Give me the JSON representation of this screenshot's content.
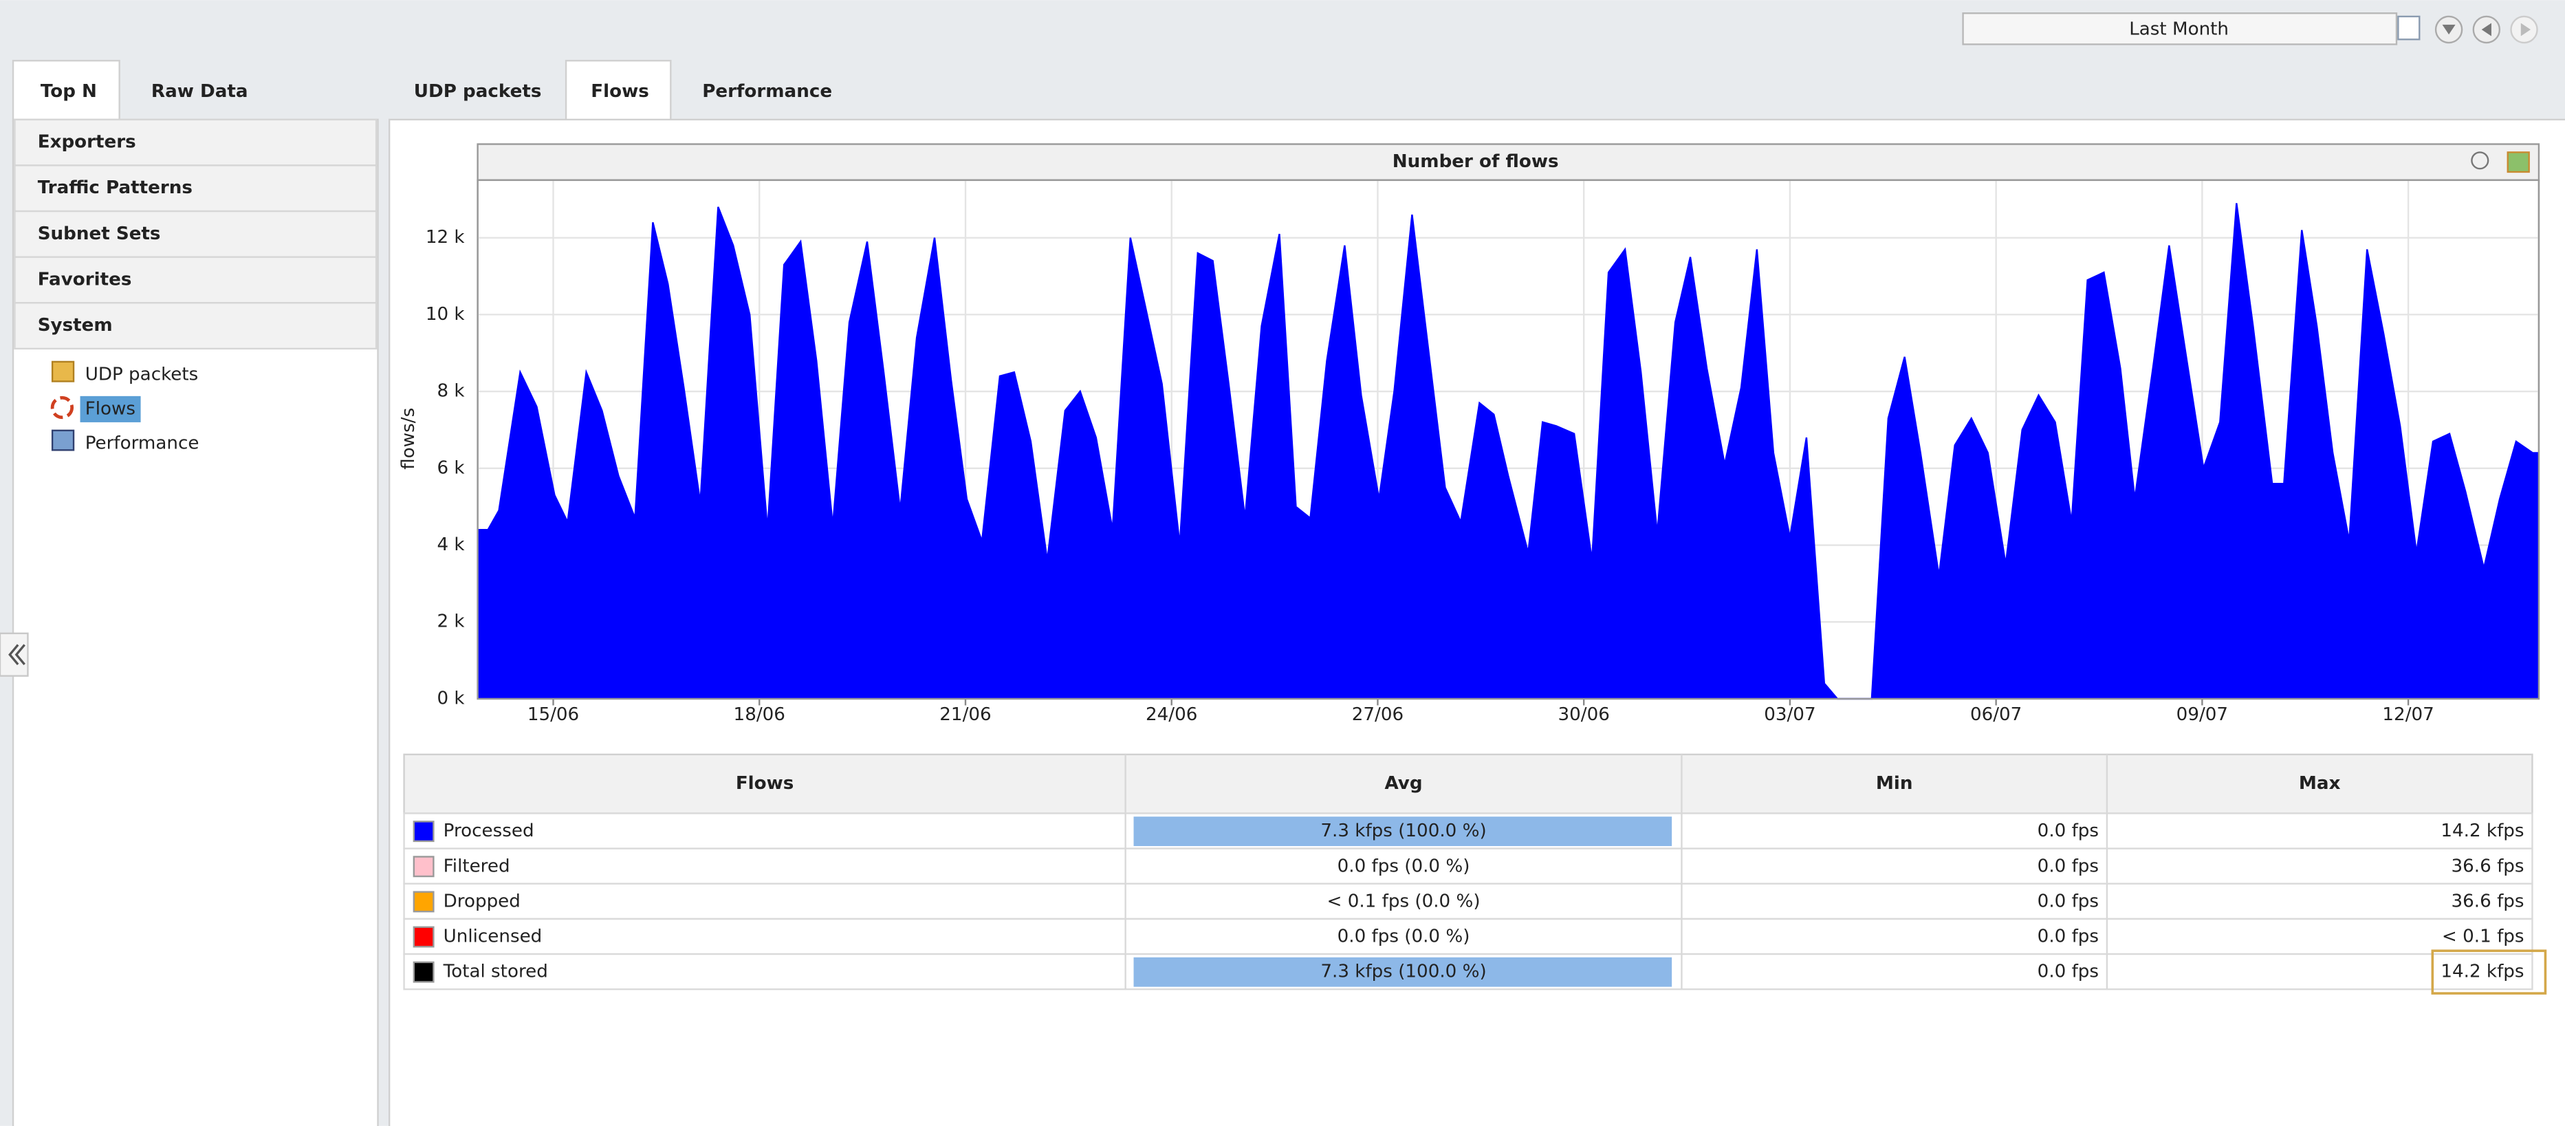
{
  "date_range": "Last Month",
  "left_tabs": [
    "Top N",
    "Raw Data"
  ],
  "right_tabs": [
    "UDP packets",
    "Flows",
    "Performance"
  ],
  "sidebar": {
    "sections": [
      "Exporters",
      "Traffic Patterns",
      "Subnet Sets",
      "Favorites",
      "System"
    ],
    "items": [
      "UDP packets",
      "Flows",
      "Performance"
    ]
  },
  "chart_data": {
    "type": "area",
    "title": "Number of flows",
    "y_label": "flows/s",
    "color": "#0000ff",
    "grid": true,
    "x": [
      -1.1,
      -0.95,
      -0.79,
      -0.48,
      -0.24,
      0.02,
      0.21,
      0.48,
      0.71,
      0.95,
      1.19,
      1.45,
      1.67,
      1.9,
      2.14,
      2.4,
      2.62,
      2.86,
      3.12,
      3.36,
      3.6,
      3.83,
      4.07,
      4.31,
      4.57,
      4.81,
      5.05,
      5.29,
      5.55,
      5.79,
      6.02,
      6.24,
      6.5,
      6.71,
      6.95,
      7.19,
      7.45,
      7.67,
      7.9,
      8.14,
      8.4,
      8.62,
      8.86,
      9.12,
      9.38,
      9.6,
      9.83,
      10.07,
      10.31,
      10.57,
      10.81,
      11.02,
      11.26,
      11.52,
      11.76,
      12.02,
      12.24,
      12.5,
      12.71,
      12.98,
      13.21,
      13.48,
      13.69,
      13.9,
      14.19,
      14.4,
      14.6,
      14.86,
      15.12,
      15.36,
      15.6,
      15.83,
      16.07,
      16.33,
      16.55,
      16.79,
      17.05,
      17.29,
      17.52,
      17.76,
      18.0,
      18.24,
      18.5,
      18.69,
      19.19,
      19.43,
      19.67,
      19.9,
      20.17,
      20.4,
      20.64,
      20.88,
      21.14,
      21.38,
      21.62,
      21.86,
      22.1,
      22.33,
      22.57,
      22.81,
      23.02,
      23.29,
      23.52,
      23.76,
      24.02,
      24.26,
      24.5,
      24.74,
      25.02,
      25.19,
      25.45,
      25.67,
      25.9,
      26.14,
      26.4,
      26.64,
      26.88,
      27.12,
      27.36,
      27.6,
      27.83,
      28.1,
      28.33,
      28.57,
      28.81,
      28.9
    ],
    "values": [
      4400,
      4400,
      4900,
      8500,
      7600,
      5300,
      4600,
      8500,
      7500,
      5800,
      4700,
      12400,
      10800,
      8100,
      5100,
      12800,
      11800,
      10000,
      4400,
      11300,
      11900,
      8800,
      4500,
      9800,
      11900,
      8500,
      4900,
      9400,
      12000,
      8300,
      5200,
      4100,
      8400,
      8500,
      6700,
      3600,
      7500,
      8000,
      6800,
      4400,
      12000,
      10200,
      8200,
      4000,
      11600,
      11400,
      8200,
      4700,
      9700,
      12100,
      5000,
      4700,
      8800,
      11800,
      7900,
      5200,
      8000,
      12600,
      9500,
      5500,
      4600,
      7700,
      7400,
      5800,
      3800,
      7200,
      7100,
      6900,
      3600,
      11100,
      11700,
      8500,
      4300,
      9800,
      11500,
      8600,
      6100,
      8100,
      11700,
      6400,
      4200,
      6800,
      400,
      0,
      0,
      7300,
      8900,
      6400,
      3200,
      6600,
      7300,
      6400,
      3500,
      7000,
      7900,
      7200,
      4600,
      10900,
      11100,
      8600,
      5200,
      8700,
      11800,
      9000,
      6000,
      7200,
      12900,
      9700,
      5600,
      5600,
      12200,
      9700,
      6400,
      4100,
      11700,
      9500,
      7100,
      3800,
      6700,
      6900,
      5400,
      3400,
      5200,
      6700,
      6400,
      6400
    ],
    "xlim": [
      -1.1,
      28.9
    ],
    "ylim": [
      0,
      13500
    ],
    "xticks": [
      {
        "value": 0,
        "label": "15/06"
      },
      {
        "value": 3,
        "label": "18/06"
      },
      {
        "value": 6,
        "label": "21/06"
      },
      {
        "value": 9,
        "label": "24/06"
      },
      {
        "value": 12,
        "label": "27/06"
      },
      {
        "value": 15,
        "label": "30/06"
      },
      {
        "value": 18,
        "label": "03/07"
      },
      {
        "value": 21,
        "label": "06/07"
      },
      {
        "value": 24,
        "label": "09/07"
      },
      {
        "value": 27,
        "label": "12/07"
      }
    ],
    "yticks": [
      {
        "value": 0,
        "label": "0 k"
      },
      {
        "value": 2000,
        "label": "2 k"
      },
      {
        "value": 4000,
        "label": "4 k"
      },
      {
        "value": 6000,
        "label": "6 k"
      },
      {
        "value": 8000,
        "label": "8 k"
      },
      {
        "value": 10000,
        "label": "10 k"
      },
      {
        "value": 12000,
        "label": "12 k"
      }
    ]
  },
  "table": {
    "headers": [
      "Flows",
      "Avg",
      "Min",
      "Max"
    ],
    "rows": [
      {
        "name": "Processed",
        "color": "#0000ff",
        "avg": "7.3 kfps (100.0 %)",
        "share": 100,
        "min": "0.0 fps",
        "max": "14.2 kfps"
      },
      {
        "name": "Filtered",
        "color": "#ffc0cb",
        "avg": "0.0 fps (0.0 %)",
        "share": 0,
        "min": "0.0 fps",
        "max": "36.6 fps"
      },
      {
        "name": "Dropped",
        "color": "#ffa500",
        "avg": "< 0.1 fps (0.0 %)",
        "share": 0,
        "min": "0.0 fps",
        "max": "36.6 fps"
      },
      {
        "name": "Unlicensed",
        "color": "#ff0000",
        "avg": "0.0 fps (0.0 %)",
        "share": 0,
        "min": "0.0 fps",
        "max": "< 0.1 fps"
      },
      {
        "name": "Total stored",
        "color": "#000000",
        "avg": "7.3 kfps (100.0 %)",
        "share": 100,
        "min": "0.0 fps",
        "max": "14.2 kfps"
      }
    ]
  }
}
